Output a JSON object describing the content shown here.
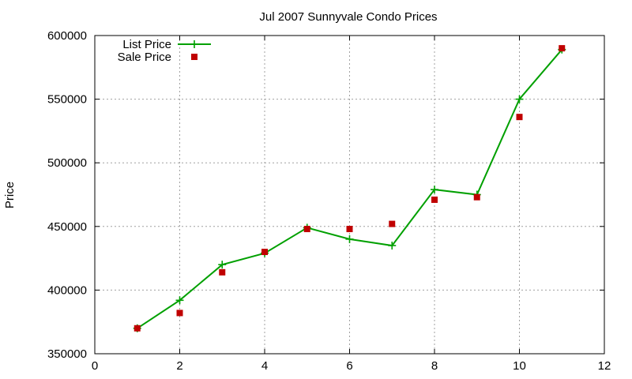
{
  "chart_data": {
    "type": "line",
    "title": "Jul 2007 Sunnyvale Condo Prices",
    "xlabel": "",
    "ylabel": "Price",
    "xlim": [
      0,
      12
    ],
    "ylim": [
      350000,
      600000
    ],
    "x_ticks": [
      0,
      2,
      4,
      6,
      8,
      10,
      12
    ],
    "y_ticks": [
      350000,
      400000,
      450000,
      500000,
      550000,
      600000
    ],
    "grid": true,
    "legend_position": "top-left",
    "series": [
      {
        "name": "List Price",
        "style": "line+cross",
        "color": "#00a000",
        "x": [
          1,
          2,
          3,
          4,
          5,
          6,
          7,
          8,
          9,
          10,
          11
        ],
        "values": [
          370000,
          392000,
          420000,
          429000,
          449000,
          440000,
          435000,
          479000,
          475000,
          550000,
          589000
        ]
      },
      {
        "name": "Sale Price",
        "style": "square",
        "color": "#c00000",
        "x": [
          1,
          2,
          3,
          4,
          5,
          6,
          7,
          8,
          9,
          10,
          11
        ],
        "values": [
          370000,
          382000,
          414000,
          430000,
          448000,
          448000,
          452000,
          471000,
          473000,
          536000,
          590000
        ]
      }
    ]
  }
}
